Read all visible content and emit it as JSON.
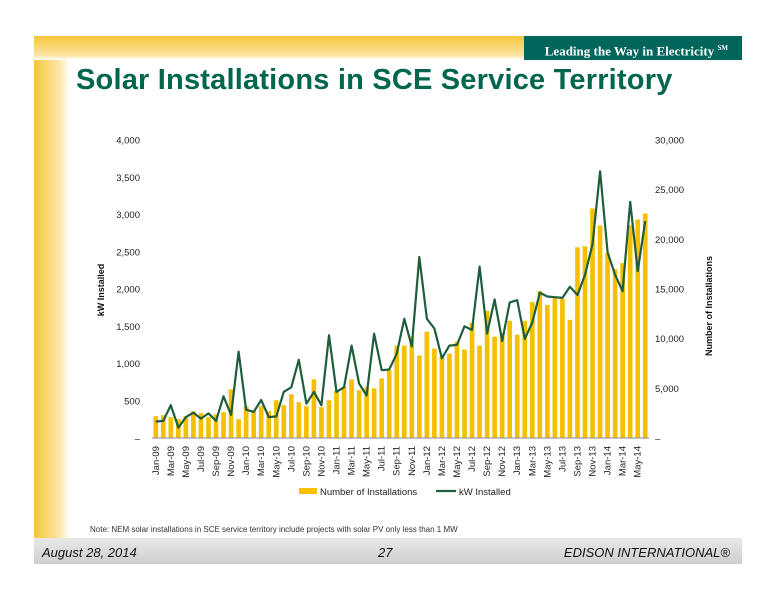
{
  "header": {
    "tagline": "Leading the Way in Electricity",
    "tagline_mark": "SM"
  },
  "title": "Solar Installations in SCE Service Territory",
  "note": "Note: NEM solar installations in SCE service territory include projects with solar PV only less than 1 MW",
  "footer": {
    "date": "August 28, 2014",
    "page": "27",
    "brand": "EDISON INTERNATIONAL®"
  },
  "colors": {
    "bar": "#f5c000",
    "line": "#1e5e3c",
    "title": "#00664d",
    "tagline_bg": "#00665b"
  },
  "chart_data": {
    "type": "bar",
    "categories": [
      "Jan-09",
      "Feb-09",
      "Mar-09",
      "Apr-09",
      "May-09",
      "Jun-09",
      "Jul-09",
      "Aug-09",
      "Sep-09",
      "Oct-09",
      "Nov-09",
      "Dec-09",
      "Jan-10",
      "Feb-10",
      "Mar-10",
      "Apr-10",
      "May-10",
      "Jun-10",
      "Jul-10",
      "Aug-10",
      "Sep-10",
      "Oct-10",
      "Nov-10",
      "Dec-10",
      "Jan-11",
      "Feb-11",
      "Mar-11",
      "Apr-11",
      "May-11",
      "Jun-11",
      "Jul-11",
      "Aug-11",
      "Sep-11",
      "Oct-11",
      "Nov-11",
      "Dec-11",
      "Jan-12",
      "Feb-12",
      "Mar-12",
      "Apr-12",
      "May-12",
      "Jun-12",
      "Jul-12",
      "Aug-12",
      "Sep-12",
      "Oct-12",
      "Nov-12",
      "Dec-12",
      "Jan-13",
      "Feb-13",
      "Mar-13",
      "Apr-13",
      "May-13",
      "Jun-13",
      "Jul-13",
      "Aug-13",
      "Sep-13",
      "Oct-13",
      "Nov-13",
      "Dec-13",
      "Jan-14",
      "Feb-14",
      "Mar-14",
      "Apr-14",
      "May-14",
      "Jun-14"
    ],
    "tick_labels": [
      "Jan-09",
      "Mar-09",
      "May-09",
      "Jul-09",
      "Sep-09",
      "Nov-09",
      "Jan-10",
      "Mar-10",
      "May-10",
      "Jul-10",
      "Sep-10",
      "Nov-10",
      "Jan-11",
      "Mar-11",
      "May-11",
      "Jul-11",
      "Sep-11",
      "Nov-11",
      "Jan-12",
      "Mar-12",
      "May-12",
      "Jul-12",
      "Sep-12",
      "Nov-12",
      "Jan-13",
      "Mar-13",
      "May-13",
      "Jul-13",
      "Sep-13",
      "Nov-13",
      "Jan-14",
      "Mar-14",
      "May-14"
    ],
    "series": [
      {
        "name": "Number of Installations",
        "type": "bar",
        "axis": "right",
        "values": [
          2200,
          2300,
          2100,
          1900,
          2200,
          2700,
          2500,
          2100,
          2400,
          2600,
          4900,
          1900,
          3200,
          2800,
          3200,
          2700,
          3800,
          3300,
          4400,
          3600,
          3200,
          5900,
          3100,
          3800,
          4800,
          5200,
          5900,
          4800,
          5100,
          5000,
          6000,
          6800,
          9300,
          9300,
          10200,
          8300,
          10700,
          9000,
          8300,
          8500,
          9700,
          8900,
          11600,
          9300,
          12800,
          10200,
          10600,
          11800,
          10400,
          11800,
          13700,
          14800,
          13400,
          14100,
          14000,
          11900,
          19200,
          19300,
          23100,
          21400,
          18600,
          17000,
          17600,
          21400,
          22000,
          22600
        ]
      },
      {
        "name": "kW Installed",
        "type": "line",
        "axis": "left",
        "values": [
          220,
          230,
          440,
          140,
          280,
          340,
          260,
          330,
          230,
          560,
          310,
          1160,
          380,
          350,
          510,
          280,
          290,
          620,
          680,
          1050,
          460,
          620,
          440,
          1380,
          620,
          680,
          1240,
          730,
          570,
          1400,
          910,
          920,
          1130,
          1600,
          1230,
          2430,
          1600,
          1470,
          1070,
          1240,
          1250,
          1500,
          1450,
          2300,
          1400,
          1860,
          1300,
          1820,
          1850,
          1330,
          1550,
          1950,
          1900,
          1890,
          1880,
          2030,
          1920,
          2190,
          2600,
          3580,
          2490,
          2190,
          1970,
          3170,
          2240,
          2910
        ],
        "value_unit": "kW"
      }
    ],
    "ylabel": "kW Installed",
    "ylim": [
      0,
      4000
    ],
    "y_ticks": [
      "–",
      "500",
      "1,000",
      "1,500",
      "2,000",
      "2,500",
      "3,000",
      "3,500",
      "4,000"
    ],
    "y2label": "Number of Installations",
    "y2lim": [
      0,
      30000
    ],
    "y2_ticks": [
      "–",
      "5,000",
      "10,000",
      "15,000",
      "20,000",
      "25,000",
      "30,000"
    ],
    "legend": [
      "Number of Installations",
      "kW Installed"
    ],
    "legend_position": "bottom",
    "grid": false
  }
}
